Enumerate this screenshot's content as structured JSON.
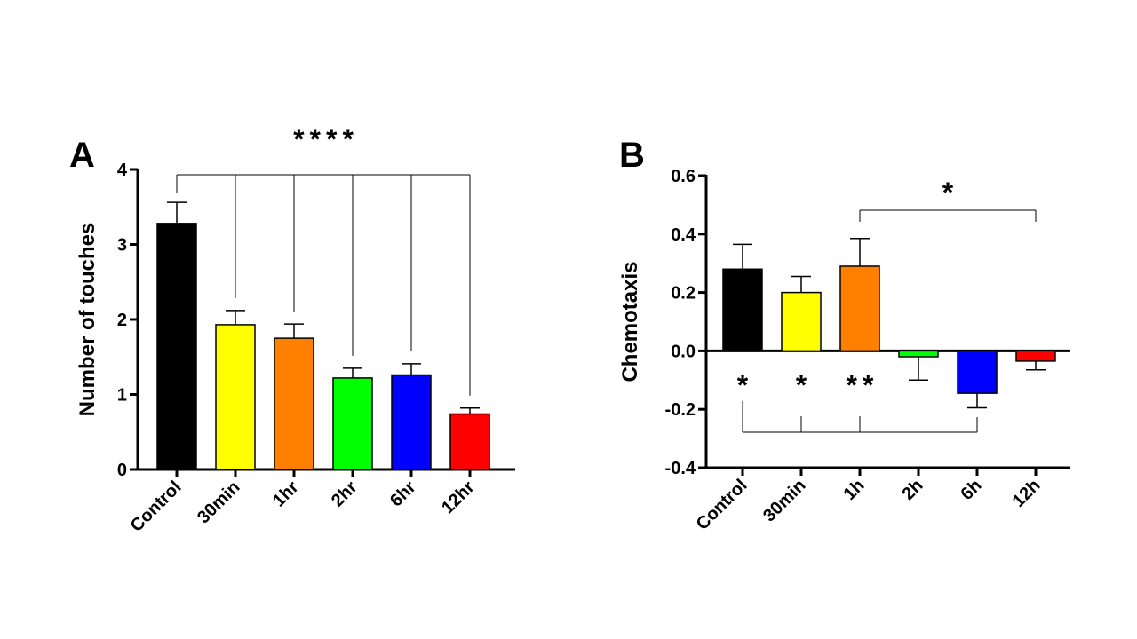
{
  "figure": {
    "panel_a_label": "A",
    "panel_b_label": "B"
  },
  "chart_data": [
    {
      "id": "A",
      "type": "bar",
      "title": "",
      "xlabel": "",
      "ylabel": "Number of touches",
      "ylim": [
        0,
        4
      ],
      "yticks": [
        "0",
        "1",
        "2",
        "3",
        "4"
      ],
      "categories": [
        "Control",
        "30min",
        "1hr",
        "2hr",
        "6hr",
        "12hr"
      ],
      "values": [
        3.28,
        1.93,
        1.75,
        1.22,
        1.26,
        0.74
      ],
      "errors": [
        0.28,
        0.19,
        0.19,
        0.13,
        0.15,
        0.08
      ],
      "colors": [
        "#000000",
        "#ffff00",
        "#ff8000",
        "#00ff00",
        "#0000ff",
        "#ff0000"
      ],
      "significance": [
        {
          "label": "****",
          "from": "Control",
          "to": [
            "30min",
            "1hr",
            "2hr",
            "6hr",
            "12hr"
          ]
        }
      ]
    },
    {
      "id": "B",
      "type": "bar",
      "title": "",
      "xlabel": "",
      "ylabel": "Chemotaxis",
      "ylim": [
        -0.4,
        0.6
      ],
      "yticks": [
        "-0.4",
        "-0.2",
        "0.0",
        "0.2",
        "0.4",
        "0.6"
      ],
      "categories": [
        "Control",
        "30min",
        "1h",
        "2h",
        "6h",
        "12h"
      ],
      "values": [
        0.28,
        0.2,
        0.29,
        -0.02,
        -0.145,
        -0.035
      ],
      "errors": [
        0.085,
        0.055,
        0.095,
        0.08,
        0.05,
        0.03
      ],
      "colors": [
        "#000000",
        "#ffff00",
        "#ff8000",
        "#00ff00",
        "#0000ff",
        "#ff0000"
      ],
      "significance": [
        {
          "label": "*",
          "from": "1h",
          "to": [
            "12h"
          ]
        },
        {
          "label": "*",
          "from": "6h",
          "to": [
            "Control"
          ]
        },
        {
          "label": "*",
          "from": "6h",
          "to": [
            "30min"
          ]
        },
        {
          "label": "**",
          "from": "6h",
          "to": [
            "1h"
          ]
        }
      ]
    }
  ]
}
